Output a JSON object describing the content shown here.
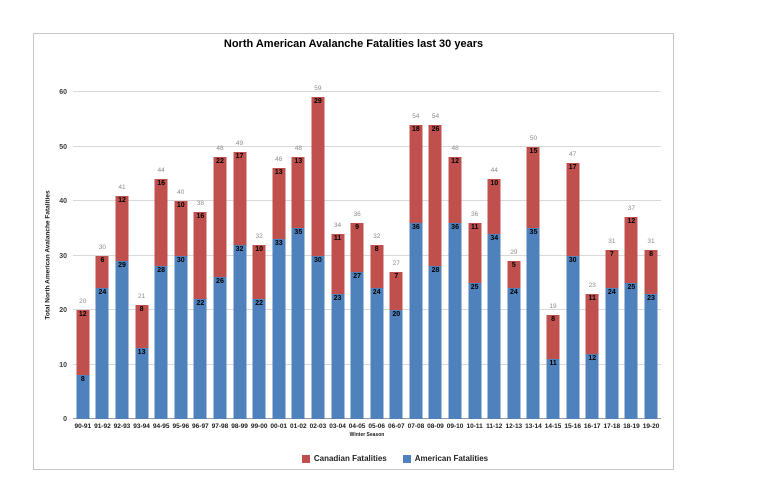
{
  "chart_data": {
    "type": "bar",
    "stacked": true,
    "title": "North American Avalanche Fatalities last 30 years",
    "xlabel": "Winter Season",
    "ylabel": "Total North American Avalanche Fatalities",
    "ylim": [
      0,
      60
    ],
    "yticks": [
      0,
      10,
      20,
      30,
      40,
      50,
      60
    ],
    "grid": true,
    "gridline_color": "#d9d9d9",
    "total_label_color": "#8c8c8c",
    "legend_position": "bottom",
    "categories": [
      "90-91",
      "91-92",
      "92-93",
      "93-94",
      "94-95",
      "95-96",
      "96-97",
      "97-98",
      "98-99",
      "99-00",
      "00-01",
      "01-02",
      "02-03",
      "03-04",
      "04-05",
      "05-06",
      "06-07",
      "07-08",
      "08-09",
      "09-10",
      "10-11",
      "11-12",
      "12-13",
      "13-14",
      "14-15",
      "15-16",
      "16-17",
      "17-18",
      "18-19",
      "19-20"
    ],
    "series": [
      {
        "name": "American Fatalities",
        "color": "#4f81bd",
        "values": [
          8,
          24,
          29,
          13,
          28,
          30,
          22,
          26,
          32,
          22,
          33,
          35,
          30,
          23,
          27,
          24,
          20,
          36,
          28,
          36,
          25,
          34,
          24,
          35,
          11,
          30,
          12,
          24,
          25,
          23
        ]
      },
      {
        "name": "Canadian Fatalities",
        "color": "#c0504d",
        "values": [
          12,
          6,
          12,
          8,
          16,
          10,
          16,
          22,
          17,
          10,
          13,
          13,
          29,
          11,
          9,
          8,
          7,
          18,
          26,
          12,
          11,
          10,
          5,
          15,
          8,
          17,
          11,
          7,
          12,
          8
        ]
      }
    ],
    "totals": [
      20,
      30,
      41,
      21,
      44,
      40,
      38,
      48,
      49,
      32,
      46,
      48,
      59,
      34,
      36,
      32,
      27,
      54,
      54,
      48,
      36,
      44,
      29,
      50,
      19,
      47,
      23,
      31,
      37,
      31
    ],
    "legend": [
      {
        "label": "Canadian Fatalities",
        "color": "#c0504d"
      },
      {
        "label": "American Fatalities",
        "color": "#4f81bd"
      }
    ]
  }
}
